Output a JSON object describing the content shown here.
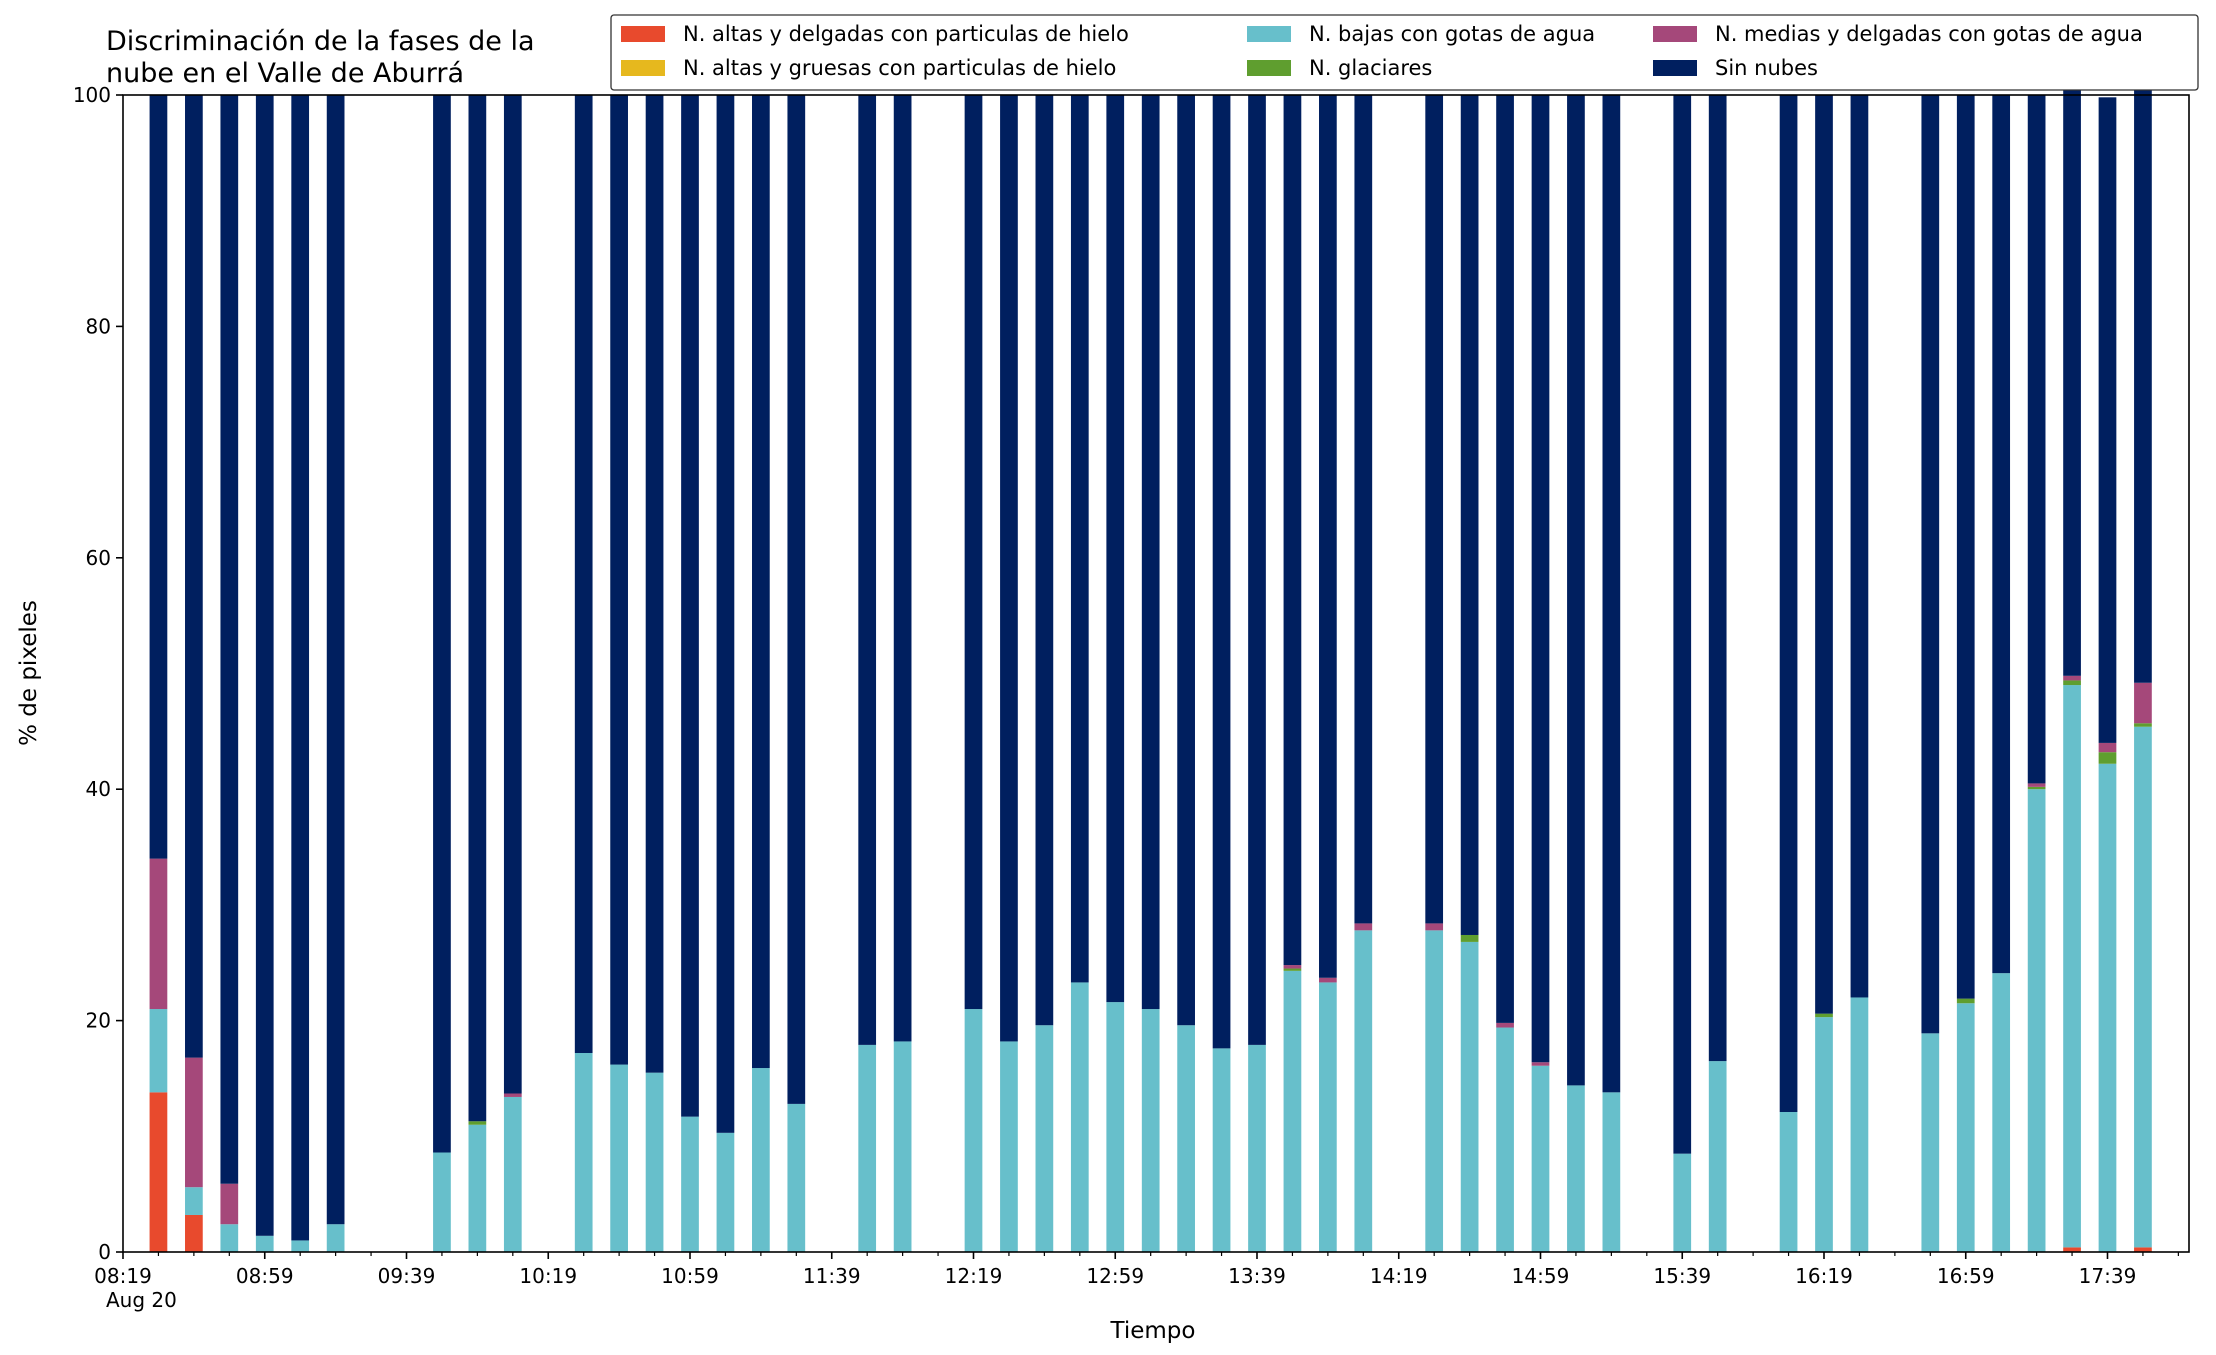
{
  "chart_data": {
    "type": "bar",
    "stacked": true,
    "title_lines": [
      "Discriminación de la fases de la",
      "nube en el Valle de Aburrá"
    ],
    "xlabel": "Tiempo",
    "ylabel": "% de pixeles",
    "ylim": [
      0,
      100
    ],
    "yticks": [
      "0",
      "20",
      "40",
      "60",
      "80",
      "100"
    ],
    "xticks": [
      "08:19",
      "08:59",
      "09:39",
      "10:19",
      "10:59",
      "11:39",
      "12:19",
      "12:59",
      "13:39",
      "14:19",
      "14:59",
      "15:39",
      "16:19",
      "16:59",
      "17:39"
    ],
    "x_date_label": "Aug 20",
    "x_range": [
      "08:19",
      "18:02"
    ],
    "bar_interval_minutes": 10,
    "grid": false,
    "legend_placement": "top-right, outside above plot, 3 columns",
    "x": [
      "08:29",
      "08:39",
      "08:49",
      "08:59",
      "09:09",
      "09:19",
      "09:29",
      "09:39",
      "09:49",
      "09:59",
      "10:09",
      "10:19",
      "10:29",
      "10:39",
      "10:49",
      "10:59",
      "11:09",
      "11:19",
      "11:29",
      "11:39",
      "11:49",
      "11:59",
      "12:09",
      "12:19",
      "12:29",
      "12:39",
      "12:49",
      "12:59",
      "13:09",
      "13:19",
      "13:29",
      "13:39",
      "13:49",
      "13:59",
      "14:09",
      "14:19",
      "14:29",
      "14:39",
      "14:49",
      "14:59",
      "15:09",
      "15:19",
      "15:29",
      "15:39",
      "15:49",
      "15:59",
      "16:09",
      "16:19",
      "16:29",
      "16:39",
      "16:49",
      "16:59",
      "17:09",
      "17:19",
      "17:29",
      "17:39",
      "17:49"
    ],
    "series": [
      {
        "name": "N. altas y delgadas con particulas de hielo",
        "color": "#e84a2d",
        "values": [
          13.8,
          3.2,
          0,
          0,
          0,
          0,
          null,
          null,
          0,
          0,
          0,
          null,
          0,
          0,
          0,
          0,
          0,
          0,
          0,
          null,
          0,
          0,
          null,
          0,
          0,
          0,
          0,
          0,
          0,
          0,
          0,
          0,
          0,
          0,
          0,
          null,
          0,
          0,
          0,
          0,
          0,
          0,
          null,
          0,
          0,
          null,
          0,
          0,
          0,
          null,
          0,
          0,
          0,
          0,
          0.4,
          0,
          0.4
        ]
      },
      {
        "name": "N. altas y gruesas con particulas de hielo",
        "color": "#e6b81e",
        "values": [
          0,
          0,
          0,
          0,
          0,
          0,
          null,
          null,
          0,
          0,
          0,
          null,
          0,
          0,
          0,
          0,
          0,
          0,
          0,
          null,
          0,
          0,
          null,
          0,
          0,
          0,
          0,
          0,
          0,
          0,
          0,
          0,
          0,
          0,
          0,
          null,
          0,
          0,
          0,
          0,
          0,
          0,
          null,
          0,
          0,
          null,
          0,
          0,
          0,
          null,
          0,
          0,
          0,
          0,
          0,
          0,
          0
        ]
      },
      {
        "name": "N. bajas con gotas de agua",
        "color": "#67bfcb",
        "values": [
          7.2,
          2.4,
          2.4,
          1.4,
          1.0,
          2.4,
          null,
          null,
          8.6,
          11.0,
          13.4,
          null,
          17.2,
          16.2,
          15.5,
          11.7,
          10.3,
          15.9,
          12.8,
          null,
          17.9,
          18.2,
          null,
          21.0,
          18.2,
          19.6,
          23.3,
          21.6,
          21.0,
          19.6,
          17.6,
          17.9,
          24.3,
          23.3,
          27.8,
          null,
          27.8,
          26.8,
          19.4,
          16.1,
          14.4,
          13.8,
          null,
          8.5,
          16.5,
          null,
          12.1,
          20.3,
          22.0,
          null,
          18.9,
          21.5,
          24.1,
          40.0,
          48.6,
          42.2,
          45.0
        ]
      },
      {
        "name": "N. glaciares",
        "color": "#5f9e2f",
        "values": [
          0,
          0,
          0,
          0,
          0,
          0,
          null,
          null,
          0,
          0.3,
          0,
          null,
          0,
          0,
          0,
          0,
          0,
          0,
          0,
          null,
          0,
          0,
          null,
          0,
          0,
          0,
          0,
          0,
          0,
          0,
          0,
          0,
          0.2,
          0,
          0,
          null,
          0,
          0.6,
          0,
          0,
          0,
          0,
          null,
          0,
          0,
          null,
          0,
          0.3,
          0,
          null,
          0,
          0.4,
          0,
          0.2,
          0.4,
          1.0,
          0.3
        ]
      },
      {
        "name": "N. medias y delgadas con gotas de agua",
        "color": "#a5487a",
        "values": [
          13.0,
          11.2,
          3.5,
          0,
          0,
          0,
          null,
          null,
          0,
          0,
          0.3,
          null,
          0,
          0,
          0,
          0,
          0,
          0,
          0,
          null,
          0,
          0,
          null,
          0,
          0,
          0,
          0,
          0,
          0,
          0,
          0,
          0,
          0.3,
          0.4,
          0.6,
          null,
          0.6,
          0,
          0.4,
          0.3,
          0,
          0,
          null,
          0,
          0,
          null,
          0,
          0,
          0,
          null,
          0,
          0,
          0,
          0.3,
          0.4,
          0.8,
          3.5
        ]
      },
      {
        "name": "Sin nubes",
        "color": "#001f5f",
        "values": [
          66.0,
          83.2,
          94.1,
          98.6,
          99.0,
          97.6,
          null,
          null,
          91.4,
          88.7,
          86.3,
          null,
          82.8,
          83.8,
          84.5,
          88.3,
          89.7,
          84.1,
          87.2,
          null,
          82.1,
          81.8,
          null,
          79.0,
          81.8,
          80.4,
          76.7,
          78.4,
          79.0,
          80.4,
          82.4,
          82.1,
          75.2,
          76.3,
          71.6,
          null,
          71.6,
          72.6,
          80.2,
          83.6,
          85.6,
          86.2,
          null,
          91.5,
          83.5,
          null,
          87.9,
          79.4,
          78.0,
          null,
          81.1,
          78.1,
          75.9,
          59.5,
          50.6,
          55.8,
          51.3
        ]
      }
    ]
  },
  "legend": [
    "N. altas y delgadas con particulas de hielo",
    "N. altas y gruesas con particulas de hielo",
    "N. bajas con gotas de agua",
    "N. glaciares",
    "N. medias y delgadas con gotas de agua",
    "Sin nubes"
  ]
}
